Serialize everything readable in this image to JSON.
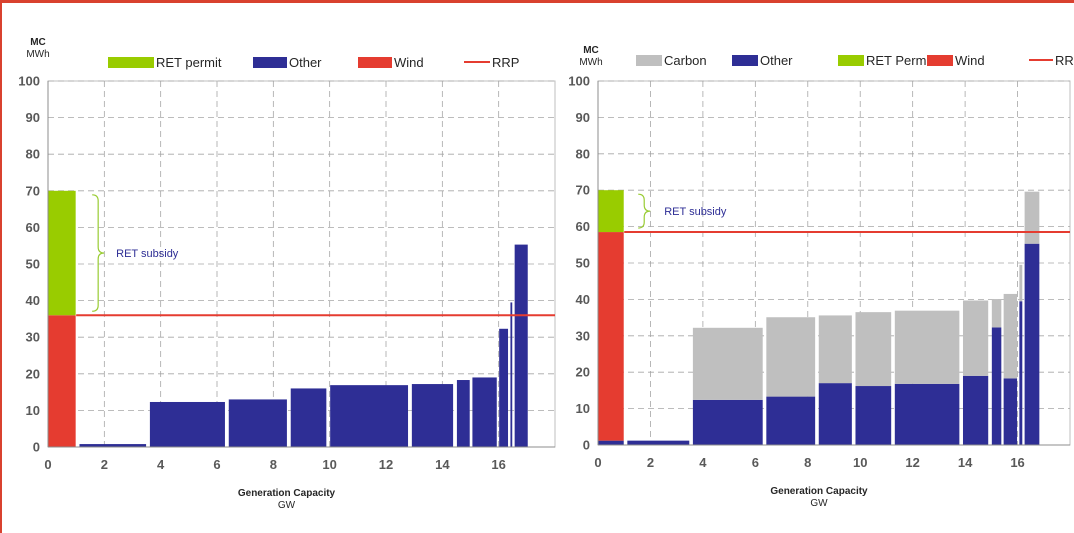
{
  "colors": {
    "other": "#2e2e95",
    "wind": "#e53c30",
    "ret": "#99cc00",
    "carbon": "#bfbfbf",
    "rrp": "#e53c30",
    "subsidy_brace": "#99cc33",
    "subsidy_text": "#2e2e95",
    "frame": "#d9412f",
    "grid": "#a6a6a6",
    "axis_text": "#595959"
  },
  "chart_data": [
    {
      "type": "bar",
      "title": "",
      "ylabel": "MC",
      "ylabel_unit": "MWh",
      "xlabel": "Generation Capacity",
      "xlabel_unit": "GW",
      "xlim": [
        0,
        18
      ],
      "ylim": [
        0,
        100
      ],
      "x_ticks": [
        0,
        2,
        4,
        6,
        8,
        10,
        12,
        14,
        16
      ],
      "y_ticks": [
        0,
        10,
        20,
        30,
        40,
        50,
        60,
        70,
        80,
        90,
        100
      ],
      "grid": true,
      "legend": [
        {
          "label": "RET permit",
          "kind": "box",
          "color": "#99cc00"
        },
        {
          "label": "Other",
          "kind": "box",
          "color": "#2e2e95"
        },
        {
          "label": "Wind",
          "kind": "box",
          "color": "#e53c30"
        },
        {
          "label": "RRP",
          "kind": "line",
          "color": "#e53c30"
        }
      ],
      "rrp": 36,
      "blocks": [
        {
          "x0": 0.0,
          "x1": 1.0,
          "other": 0,
          "wind": 36,
          "ret": 34
        },
        {
          "x0": 1.1,
          "x1": 3.5,
          "other": 0.8
        },
        {
          "x0": 3.6,
          "x1": 6.3,
          "other": 12.3
        },
        {
          "x0": 6.4,
          "x1": 8.5,
          "other": 13.0
        },
        {
          "x0": 8.6,
          "x1": 9.9,
          "other": 16.0
        },
        {
          "x0": 10.0,
          "x1": 12.8,
          "other": 16.9
        },
        {
          "x0": 12.9,
          "x1": 14.4,
          "other": 17.2
        },
        {
          "x0": 14.5,
          "x1": 14.99,
          "other": 18.3
        },
        {
          "x0": 15.05,
          "x1": 15.95,
          "other": 19.0
        },
        {
          "x0": 16.0,
          "x1": 16.35,
          "other": 32.3
        },
        {
          "x0": 16.4,
          "x1": 16.5,
          "other": 39.5
        },
        {
          "x0": 16.55,
          "x1": 17.05,
          "other": 55.3
        }
      ],
      "annotation": {
        "text": "RET subsidy",
        "y_low": 36,
        "y_high": 70
      }
    },
    {
      "type": "bar",
      "title": "",
      "ylabel": "MC",
      "ylabel_unit": "MWh",
      "xlabel": "Generation Capacity",
      "xlabel_unit": "GW",
      "xlim": [
        0,
        18
      ],
      "ylim": [
        0,
        100
      ],
      "x_ticks": [
        0,
        2,
        4,
        6,
        8,
        10,
        12,
        14,
        16
      ],
      "y_ticks": [
        0,
        10,
        20,
        30,
        40,
        50,
        60,
        70,
        80,
        90,
        100
      ],
      "grid": true,
      "legend": [
        {
          "label": "Carbon",
          "kind": "box",
          "color": "#bfbfbf"
        },
        {
          "label": "Other",
          "kind": "box",
          "color": "#2e2e95"
        },
        {
          "label": "RET Permit",
          "kind": "box",
          "color": "#99cc00"
        },
        {
          "label": "Wind",
          "kind": "box",
          "color": "#e53c30"
        },
        {
          "label": "RRP",
          "kind": "line",
          "color": "#e53c30"
        }
      ],
      "rrp": 58.5,
      "blocks": [
        {
          "x0": 0.0,
          "x1": 1.0,
          "other": 1.2,
          "wind": 57.3,
          "ret": 11.5
        },
        {
          "x0": 1.1,
          "x1": 3.5,
          "other": 1.2
        },
        {
          "x0": 3.6,
          "x1": 6.3,
          "other": 12.4,
          "carbon": 19.8
        },
        {
          "x0": 6.4,
          "x1": 8.3,
          "other": 13.3,
          "carbon": 21.8
        },
        {
          "x0": 8.4,
          "x1": 9.7,
          "other": 17.0,
          "carbon": 18.6
        },
        {
          "x0": 9.8,
          "x1": 11.2,
          "other": 16.2,
          "carbon": 20.3
        },
        {
          "x0": 11.3,
          "x1": 13.8,
          "other": 16.8,
          "carbon": 20.1
        },
        {
          "x0": 13.9,
          "x1": 14.9,
          "other": 19.0,
          "carbon": 20.7
        },
        {
          "x0": 15.0,
          "x1": 15.4,
          "other": 32.3,
          "carbon": 7.8
        },
        {
          "x0": 15.45,
          "x1": 16.0,
          "other": 18.3,
          "carbon": 23.2
        },
        {
          "x0": 16.05,
          "x1": 16.2,
          "other": 39.5,
          "carbon": 10.0
        },
        {
          "x0": 16.25,
          "x1": 16.85,
          "other": 55.3,
          "carbon": 14.3
        }
      ],
      "annotation": {
        "text": "RET subsidy",
        "y_low": 58.5,
        "y_high": 70
      }
    }
  ]
}
